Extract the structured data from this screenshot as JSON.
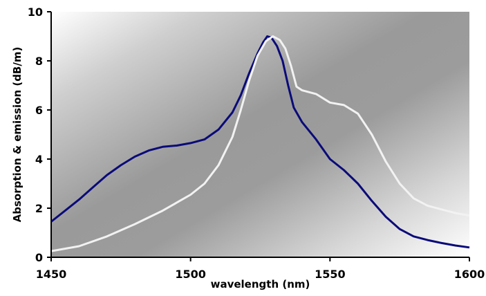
{
  "chart_data": {
    "type": "line",
    "title": "",
    "xlabel": "wavelength (nm)",
    "ylabel": "Absorption & emission (dB/m)",
    "xlim": [
      1450,
      1600
    ],
    "ylim": [
      0,
      10
    ],
    "x_ticks": [
      1450,
      1500,
      1550,
      1600
    ],
    "y_ticks": [
      0,
      2,
      4,
      6,
      8,
      10
    ],
    "x_tick_labels": [
      "1450",
      "1500",
      "1550",
      "1600"
    ],
    "y_tick_labels": [
      "0",
      "2",
      "4",
      "6",
      "8",
      "10"
    ],
    "grid": false,
    "legend": "none",
    "background": "diagonal gradient, white at top-left and bottom-right, grey in the middle",
    "series": [
      {
        "color": "#0a0a7a",
        "points": [
          [
            1450,
            1.45
          ],
          [
            1455,
            1.9
          ],
          [
            1460,
            2.35
          ],
          [
            1465,
            2.85
          ],
          [
            1470,
            3.35
          ],
          [
            1475,
            3.75
          ],
          [
            1480,
            4.1
          ],
          [
            1485,
            4.35
          ],
          [
            1490,
            4.5
          ],
          [
            1495,
            4.55
          ],
          [
            1500,
            4.65
          ],
          [
            1505,
            4.8
          ],
          [
            1510,
            5.2
          ],
          [
            1515,
            5.9
          ],
          [
            1518,
            6.6
          ],
          [
            1521,
            7.5
          ],
          [
            1524,
            8.3
          ],
          [
            1526,
            8.75
          ],
          [
            1527.5,
            9.0
          ],
          [
            1529,
            8.95
          ],
          [
            1531,
            8.6
          ],
          [
            1533,
            8.0
          ],
          [
            1535,
            7.0
          ],
          [
            1537,
            6.1
          ],
          [
            1540,
            5.5
          ],
          [
            1545,
            4.8
          ],
          [
            1550,
            4.0
          ],
          [
            1555,
            3.55
          ],
          [
            1560,
            3.0
          ],
          [
            1565,
            2.3
          ],
          [
            1570,
            1.65
          ],
          [
            1575,
            1.15
          ],
          [
            1580,
            0.85
          ],
          [
            1585,
            0.7
          ],
          [
            1590,
            0.58
          ],
          [
            1595,
            0.48
          ],
          [
            1600,
            0.4
          ]
        ]
      },
      {
        "color": "#f2f2f2",
        "points": [
          [
            1450,
            0.25
          ],
          [
            1460,
            0.45
          ],
          [
            1470,
            0.85
          ],
          [
            1480,
            1.35
          ],
          [
            1490,
            1.9
          ],
          [
            1500,
            2.55
          ],
          [
            1505,
            3.0
          ],
          [
            1510,
            3.75
          ],
          [
            1515,
            4.9
          ],
          [
            1518,
            6.0
          ],
          [
            1521,
            7.2
          ],
          [
            1524,
            8.2
          ],
          [
            1527,
            8.8
          ],
          [
            1529.5,
            9.0
          ],
          [
            1532,
            8.85
          ],
          [
            1534,
            8.5
          ],
          [
            1536,
            7.8
          ],
          [
            1538,
            6.95
          ],
          [
            1540,
            6.8
          ],
          [
            1545,
            6.65
          ],
          [
            1550,
            6.3
          ],
          [
            1555,
            6.2
          ],
          [
            1560,
            5.85
          ],
          [
            1565,
            5.0
          ],
          [
            1570,
            3.9
          ],
          [
            1575,
            3.0
          ],
          [
            1580,
            2.4
          ],
          [
            1585,
            2.1
          ],
          [
            1590,
            1.95
          ],
          [
            1595,
            1.8
          ],
          [
            1600,
            1.7
          ]
        ]
      }
    ]
  }
}
